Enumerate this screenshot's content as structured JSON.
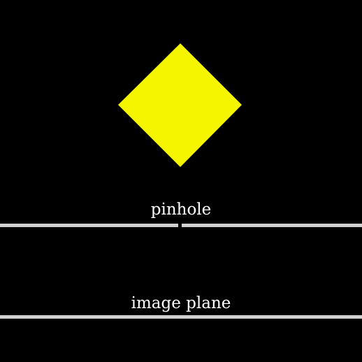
{
  "labels": {
    "pinhole": "pinhole",
    "image_plane": "image plane"
  },
  "colors": {
    "background": "#000000",
    "object": "#f5f500",
    "barrier": "#cfcfcf",
    "text": "#ffffff"
  },
  "shapes": {
    "object": "diamond"
  }
}
